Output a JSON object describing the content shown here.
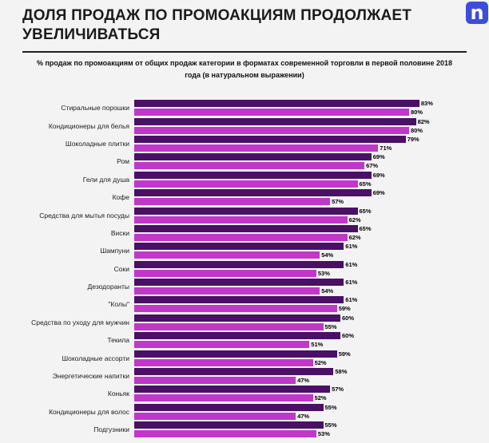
{
  "header": {
    "title": "ДОЛЯ ПРОДАЖ ПО ПРОМОАКЦИЯМ ПРОДОЛЖАЕТ УВЕЛИЧИВАТЬСЯ",
    "logo_letter": "n",
    "logo_color": "#3c4ed9"
  },
  "subtitle": "% продаж по промоакциям от общих продаж категории в форматах современной торговли в первой половине 2018 года (в натуральном выражении)",
  "chart_data": {
    "type": "bar",
    "orientation": "horizontal",
    "title": "ДОЛЯ ПРОДАЖ ПО ПРОМОАКЦИЯМ ПРОДОЛЖАЕТ УВЕЛИЧИВАТЬСЯ",
    "subtitle": "% продаж по промоакциям от общих продаж категории в форматах современной торговли в первой половине 2018 года (в натуральном выражении)",
    "unit": "%",
    "xlim": [
      0,
      100
    ],
    "grid": false,
    "legend": "none",
    "value_labels": true,
    "colors": [
      "#4a1065",
      "#c137c9"
    ],
    "categories": [
      "Стиральные порошки",
      "Кондиционеры для белья",
      "Шоколадные плитки",
      "Ром",
      "Гели для душа",
      "Кофе",
      "Средства для мытья посуды",
      "Виски",
      "Шампуни",
      "Соки",
      "Дезодоранты",
      "\"Колы\"",
      "Средства по уходу для мужчин",
      "Текила",
      "Шоколадные ассорти",
      "Энергетические напитки",
      "Коньяк",
      "Кондиционеры для волос",
      "Подгузники"
    ],
    "series": [
      {
        "name": "dark-purple",
        "values": [
          83,
          82,
          79,
          69,
          69,
          69,
          65,
          65,
          61,
          61,
          61,
          61,
          60,
          60,
          59,
          58,
          57,
          55,
          55
        ]
      },
      {
        "name": "magenta",
        "values": [
          80,
          80,
          71,
          67,
          65,
          57,
          62,
          62,
          54,
          53,
          54,
          59,
          55,
          51,
          52,
          47,
          52,
          47,
          53
        ]
      }
    ]
  }
}
